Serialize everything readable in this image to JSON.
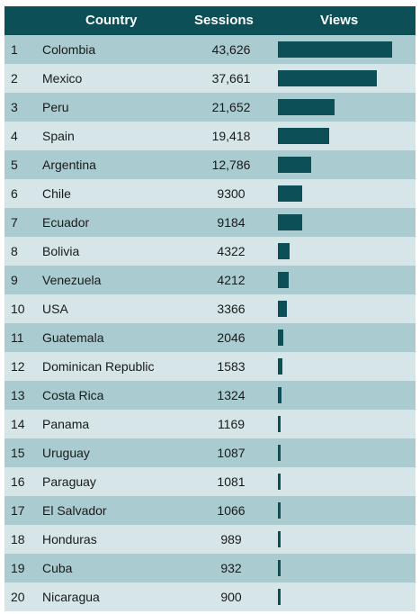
{
  "header": {
    "country": "Country",
    "sessions": "Sessions",
    "views": "Views"
  },
  "chart_data": {
    "type": "table",
    "columns": [
      "",
      "Country",
      "Sessions",
      "Views"
    ],
    "rows": [
      {
        "rank": "1",
        "country": "Colombia",
        "sessions": "43,626",
        "value": 43626
      },
      {
        "rank": "2",
        "country": "Mexico",
        "sessions": "37,661",
        "value": 37661
      },
      {
        "rank": "3",
        "country": "Peru",
        "sessions": "21,652",
        "value": 21652
      },
      {
        "rank": "4",
        "country": "Spain",
        "sessions": "19,418",
        "value": 19418
      },
      {
        "rank": "5",
        "country": "Argentina",
        "sessions": "12,786",
        "value": 12786
      },
      {
        "rank": "6",
        "country": "Chile",
        "sessions": "9300",
        "value": 9300
      },
      {
        "rank": "7",
        "country": "Ecuador",
        "sessions": "9184",
        "value": 9184
      },
      {
        "rank": "8",
        "country": "Bolivia",
        "sessions": "4322",
        "value": 4322
      },
      {
        "rank": "9",
        "country": "Venezuela",
        "sessions": "4212",
        "value": 4212
      },
      {
        "rank": "10",
        "country": "USA",
        "sessions": "3366",
        "value": 3366
      },
      {
        "rank": "11",
        "country": "Guatemala",
        "sessions": "2046",
        "value": 2046
      },
      {
        "rank": "12",
        "country": "Dominican Republic",
        "sessions": "1583",
        "value": 1583
      },
      {
        "rank": "13",
        "country": "Costa Rica",
        "sessions": "1324",
        "value": 1324
      },
      {
        "rank": "14",
        "country": "Panama",
        "sessions": "1169",
        "value": 1169
      },
      {
        "rank": "15",
        "country": "Uruguay",
        "sessions": "1087",
        "value": 1087
      },
      {
        "rank": "16",
        "country": "Paraguay",
        "sessions": "1081",
        "value": 1081
      },
      {
        "rank": "17",
        "country": "El Salvador",
        "sessions": "1066",
        "value": 1066
      },
      {
        "rank": "18",
        "country": "Honduras",
        "sessions": "989",
        "value": 989
      },
      {
        "rank": "19",
        "country": "Cuba",
        "sessions": "932",
        "value": 932
      },
      {
        "rank": "20",
        "country": "Nicaragua",
        "sessions": "900",
        "value": 900
      }
    ]
  },
  "colors": {
    "header_bg": "#0d4f56",
    "bar": "#0d4f56",
    "row_dark": "#aacbcf",
    "row_light": "#d5e5e8"
  }
}
